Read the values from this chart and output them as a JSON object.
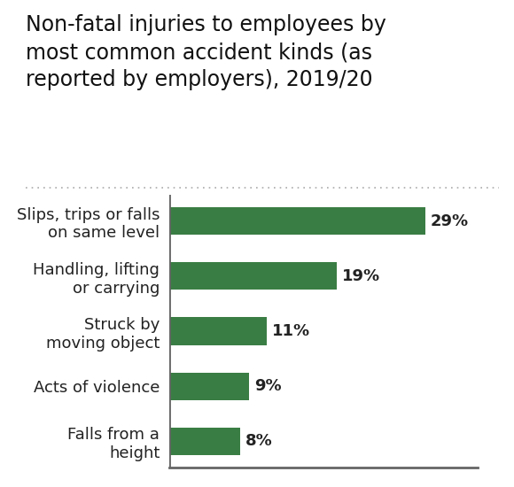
{
  "title": "Non-fatal injuries to employees by\nmost common accident kinds (as\nreported by employers), 2019/20",
  "categories": [
    "Slips, trips or falls\non same level",
    "Handling, lifting\nor carrying",
    "Struck by\nmoving object",
    "Acts of violence",
    "Falls from a\nheight"
  ],
  "values": [
    29,
    19,
    11,
    9,
    8
  ],
  "labels": [
    "29%",
    "19%",
    "11%",
    "9%",
    "8%"
  ],
  "bar_color": "#3a7d44",
  "bg_color": "#ffffff",
  "title_fontsize": 17,
  "label_fontsize": 13,
  "value_fontsize": 13,
  "axis_color": "#666666",
  "dotted_line_color": "#aaaaaa",
  "xlim": [
    0,
    35
  ]
}
